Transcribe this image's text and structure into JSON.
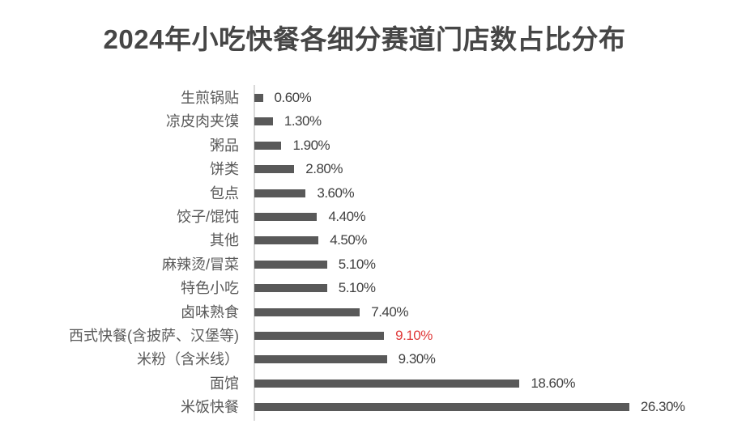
{
  "title": "2024年小吃快餐各细分赛道门店数占比分布",
  "colors": {
    "bar": "#595959",
    "label": "#595959",
    "value": "#404040",
    "highlight": "#e03a3a",
    "title": "#464646",
    "axis": "#d9d9d9"
  },
  "chart_data": {
    "type": "bar",
    "orientation": "horizontal",
    "title": "2024年小吃快餐各细分赛道门店数占比分布",
    "xlabel": "",
    "ylabel": "",
    "unit": "%",
    "grid": false,
    "legend": null,
    "categories": [
      "生煎锅贴",
      "凉皮肉夹馍",
      "粥品",
      "饼类",
      "包点",
      "饺子/馄饨",
      "其他",
      "麻辣烫/冒菜",
      "特色小吃",
      "卤味熟食",
      "西式快餐(含披萨、汉堡等)",
      "米粉（含米线）",
      "面馆",
      "米饭快餐"
    ],
    "values": [
      0.6,
      1.3,
      1.9,
      2.8,
      3.6,
      4.4,
      4.5,
      5.1,
      5.1,
      7.4,
      9.1,
      9.3,
      18.6,
      26.3
    ],
    "data_labels": [
      "0.60%",
      "1.30%",
      "1.90%",
      "2.80%",
      "3.60%",
      "4.40%",
      "4.50%",
      "5.10%",
      "5.10%",
      "7.40%",
      "9.10%",
      "9.30%",
      "18.60%",
      "26.30%"
    ],
    "highlighted": [
      "西式快餐(含披萨、汉堡等)"
    ],
    "xlim": [
      0,
      26.3
    ]
  },
  "rows": [
    {
      "label": "生煎锅贴",
      "value": 0.6,
      "value_label": "0.60%",
      "highlight": false
    },
    {
      "label": "凉皮肉夹馍",
      "value": 1.3,
      "value_label": "1.30%",
      "highlight": false
    },
    {
      "label": "粥品",
      "value": 1.9,
      "value_label": "1.90%",
      "highlight": false
    },
    {
      "label": "饼类",
      "value": 2.8,
      "value_label": "2.80%",
      "highlight": false
    },
    {
      "label": "包点",
      "value": 3.6,
      "value_label": "3.60%",
      "highlight": false
    },
    {
      "label": "饺子/馄饨",
      "value": 4.4,
      "value_label": "4.40%",
      "highlight": false
    },
    {
      "label": "其他",
      "value": 4.5,
      "value_label": "4.50%",
      "highlight": false
    },
    {
      "label": "麻辣烫/冒菜",
      "value": 5.1,
      "value_label": "5.10%",
      "highlight": false
    },
    {
      "label": "特色小吃",
      "value": 5.1,
      "value_label": "5.10%",
      "highlight": false
    },
    {
      "label": "卤味熟食",
      "value": 7.4,
      "value_label": "7.40%",
      "highlight": false
    },
    {
      "label": "西式快餐(含披萨、汉堡等)",
      "value": 9.1,
      "value_label": "9.10%",
      "highlight": true
    },
    {
      "label": "米粉（含米线）",
      "value": 9.3,
      "value_label": "9.30%",
      "highlight": false
    },
    {
      "label": "面馆",
      "value": 18.6,
      "value_label": "18.60%",
      "highlight": false
    },
    {
      "label": "米饭快餐",
      "value": 26.3,
      "value_label": "26.30%",
      "highlight": false
    }
  ]
}
